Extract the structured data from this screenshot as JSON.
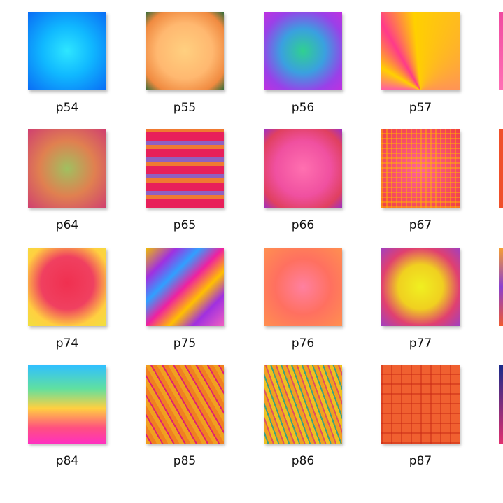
{
  "rows": [
    [
      "p54",
      "p55",
      "p56",
      "p57"
    ],
    [
      "p64",
      "p65",
      "p66",
      "p67"
    ],
    [
      "p74",
      "p75",
      "p76",
      "p77"
    ],
    [
      "p84",
      "p85",
      "p86",
      "p87"
    ]
  ]
}
